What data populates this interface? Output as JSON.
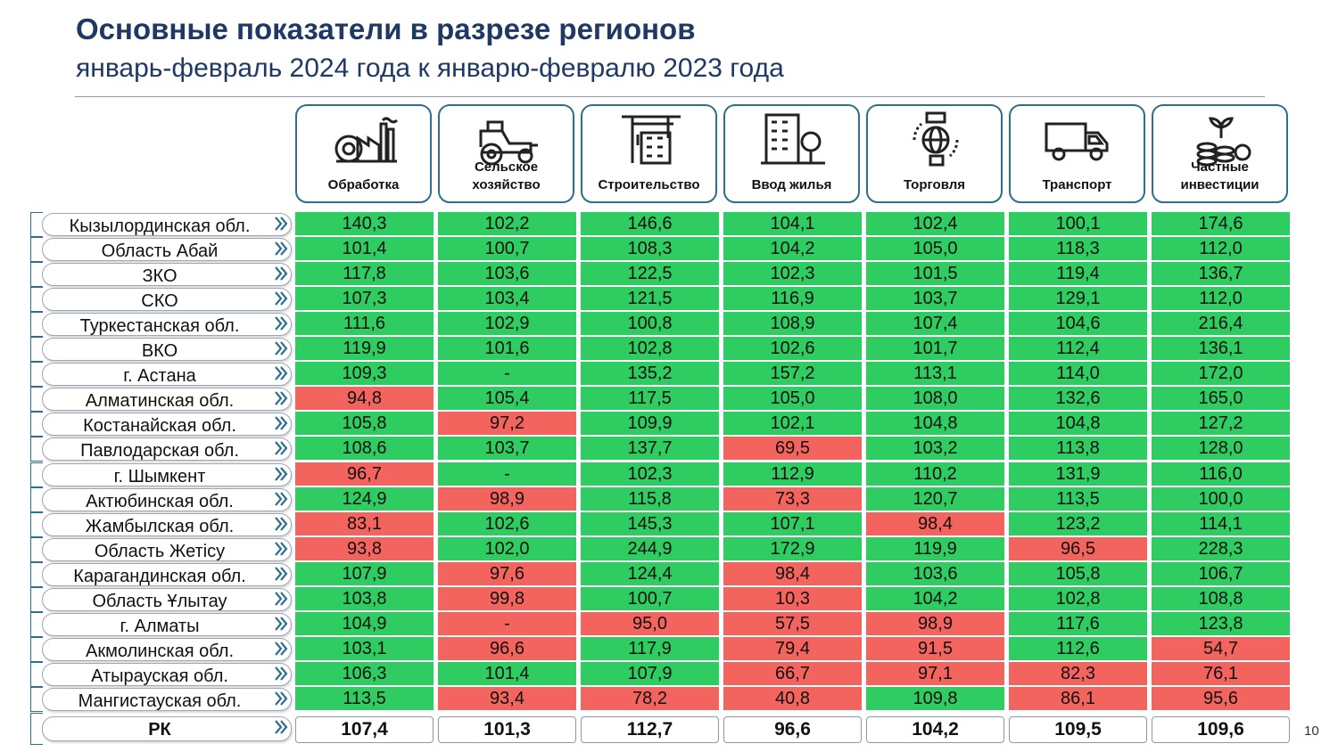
{
  "title": "Основные показатели в разрезе регионов",
  "subtitle": "январь-февраль 2024 года к январю-февралю 2023 года",
  "page_number": "10",
  "colors": {
    "green": "#2ecc61",
    "red": "#f4645f",
    "accent": "#1f3864",
    "frame": "#2e6f8e"
  },
  "columns": [
    {
      "label": "Обработка",
      "icon": "factory-icon"
    },
    {
      "label": "Сельское\nхозяйство",
      "icon": "tractor-icon"
    },
    {
      "label": "Строительство",
      "icon": "construction-crane-icon"
    },
    {
      "label": "Ввод жилья",
      "icon": "apartment-building-icon"
    },
    {
      "label": "Торговля",
      "icon": "globe-trade-icon"
    },
    {
      "label": "Транспорт",
      "icon": "truck-icon"
    },
    {
      "label": "Частные\nинвестиции",
      "icon": "coins-plant-icon"
    }
  ],
  "rows": [
    {
      "region": "Кызылординская обл.",
      "values": [
        "140,3",
        "102,2",
        "146,6",
        "104,1",
        "102,4",
        "100,1",
        "174,6"
      ],
      "status": [
        "g",
        "g",
        "g",
        "g",
        "g",
        "g",
        "g"
      ]
    },
    {
      "region": "Область Абай",
      "values": [
        "101,4",
        "100,7",
        "108,3",
        "104,2",
        "105,0",
        "118,3",
        "112,0"
      ],
      "status": [
        "g",
        "g",
        "g",
        "g",
        "g",
        "g",
        "g"
      ]
    },
    {
      "region": "ЗКО",
      "values": [
        "117,8",
        "103,6",
        "122,5",
        "102,3",
        "101,5",
        "119,4",
        "136,7"
      ],
      "status": [
        "g",
        "g",
        "g",
        "g",
        "g",
        "g",
        "g"
      ]
    },
    {
      "region": "СКО",
      "values": [
        "107,3",
        "103,4",
        "121,5",
        "116,9",
        "103,7",
        "129,1",
        "112,0"
      ],
      "status": [
        "g",
        "g",
        "g",
        "g",
        "g",
        "g",
        "g"
      ]
    },
    {
      "region": "Туркестанская обл.",
      "values": [
        "111,6",
        "102,9",
        "100,8",
        "108,9",
        "107,4",
        "104,6",
        "216,4"
      ],
      "status": [
        "g",
        "g",
        "g",
        "g",
        "g",
        "g",
        "g"
      ]
    },
    {
      "region": "ВКО",
      "values": [
        "119,9",
        "101,6",
        "102,8",
        "102,6",
        "101,7",
        "112,4",
        "136,1"
      ],
      "status": [
        "g",
        "g",
        "g",
        "g",
        "g",
        "g",
        "g"
      ]
    },
    {
      "region": "г. Астана",
      "values": [
        "109,3",
        "-",
        "135,2",
        "157,2",
        "113,1",
        "114,0",
        "172,0"
      ],
      "status": [
        "g",
        "g",
        "g",
        "g",
        "g",
        "g",
        "g"
      ]
    },
    {
      "region": "Алматинская обл.",
      "values": [
        "94,8",
        "105,4",
        "117,5",
        "105,0",
        "108,0",
        "132,6",
        "165,0"
      ],
      "status": [
        "r",
        "g",
        "g",
        "g",
        "g",
        "g",
        "g"
      ]
    },
    {
      "region": "Костанайская обл.",
      "values": [
        "105,8",
        "97,2",
        "109,9",
        "102,1",
        "104,8",
        "104,8",
        "127,2"
      ],
      "status": [
        "g",
        "r",
        "g",
        "g",
        "g",
        "g",
        "g"
      ]
    },
    {
      "region": "Павлодарская обл.",
      "values": [
        "108,6",
        "103,7",
        "137,7",
        "69,5",
        "103,2",
        "113,8",
        "128,0"
      ],
      "status": [
        "g",
        "g",
        "g",
        "r",
        "g",
        "g",
        "g"
      ]
    },
    {
      "region": "г. Шымкент",
      "values": [
        "96,7",
        "-",
        "102,3",
        "112,9",
        "110,2",
        "131,9",
        "116,0"
      ],
      "status": [
        "r",
        "g",
        "g",
        "g",
        "g",
        "g",
        "g"
      ]
    },
    {
      "region": "Актюбинская обл.",
      "values": [
        "124,9",
        "98,9",
        "115,8",
        "73,3",
        "120,7",
        "113,5",
        "100,0"
      ],
      "status": [
        "g",
        "r",
        "g",
        "r",
        "g",
        "g",
        "g"
      ]
    },
    {
      "region": "Жамбылская обл.",
      "values": [
        "83,1",
        "102,6",
        "145,3",
        "107,1",
        "98,4",
        "123,2",
        "114,1"
      ],
      "status": [
        "r",
        "g",
        "g",
        "g",
        "r",
        "g",
        "g"
      ]
    },
    {
      "region": "Область Жетісу",
      "values": [
        "93,8",
        "102,0",
        "244,9",
        "172,9",
        "119,9",
        "96,5",
        "228,3"
      ],
      "status": [
        "r",
        "g",
        "g",
        "g",
        "g",
        "r",
        "g"
      ]
    },
    {
      "region": "Карагандинская обл.",
      "values": [
        "107,9",
        "97,6",
        "124,4",
        "98,4",
        "103,6",
        "105,8",
        "106,7"
      ],
      "status": [
        "g",
        "r",
        "g",
        "r",
        "g",
        "g",
        "g"
      ]
    },
    {
      "region": "Область Ұлытау",
      "values": [
        "103,8",
        "99,8",
        "100,7",
        "10,3",
        "104,2",
        "102,8",
        "108,8"
      ],
      "status": [
        "g",
        "r",
        "g",
        "r",
        "g",
        "g",
        "g"
      ]
    },
    {
      "region": "г. Алматы",
      "values": [
        "104,9",
        "-",
        "95,0",
        "57,5",
        "98,9",
        "117,6",
        "123,8"
      ],
      "status": [
        "g",
        "r",
        "r",
        "r",
        "r",
        "g",
        "g"
      ]
    },
    {
      "region": "Акмолинская обл.",
      "values": [
        "103,1",
        "96,6",
        "117,9",
        "79,4",
        "91,5",
        "112,6",
        "54,7"
      ],
      "status": [
        "g",
        "r",
        "g",
        "r",
        "r",
        "g",
        "r"
      ]
    },
    {
      "region": "Атырауская обл.",
      "values": [
        "106,3",
        "101,4",
        "107,9",
        "66,7",
        "97,1",
        "82,3",
        "76,1"
      ],
      "status": [
        "g",
        "g",
        "g",
        "r",
        "r",
        "r",
        "r"
      ]
    },
    {
      "region": "Мангистауская обл.",
      "values": [
        "113,5",
        "93,4",
        "78,2",
        "40,8",
        "109,8",
        "86,1",
        "95,6"
      ],
      "status": [
        "g",
        "r",
        "r",
        "r",
        "g",
        "r",
        "r"
      ]
    }
  ],
  "total": {
    "region": "РК",
    "values": [
      "107,4",
      "101,3",
      "112,7",
      "96,6",
      "104,2",
      "109,5",
      "109,6"
    ]
  }
}
